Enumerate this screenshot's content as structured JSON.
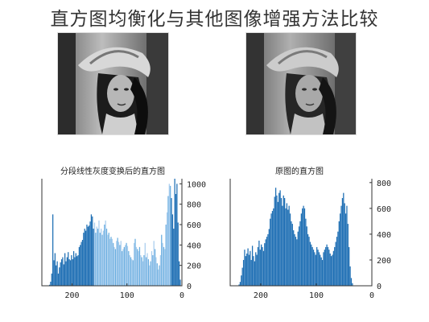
{
  "page_title": "直方图均衡化与其他图像增强方法比较",
  "colors": {
    "bar_dark": "#1f6fb4",
    "bar_light": "#6aaee0",
    "axis": "#333333"
  },
  "chart_data": [
    {
      "type": "bar",
      "title": "分段线性灰度变换后的直方图",
      "xlabel": "",
      "ylabel": "",
      "xlim": [
        255,
        0
      ],
      "ylim": [
        0,
        1050
      ],
      "x_ticks": [
        "200",
        "100",
        "0"
      ],
      "y_ticks": [
        "0",
        "200",
        "400",
        "600",
        "800",
        "1000"
      ],
      "x": [
        245,
        243,
        241,
        239,
        237,
        235,
        233,
        231,
        229,
        227,
        225,
        223,
        221,
        219,
        217,
        215,
        213,
        211,
        209,
        207,
        205,
        203,
        201,
        199,
        197,
        195,
        193,
        191,
        189,
        187,
        185,
        183,
        181,
        179,
        177,
        175,
        173,
        171,
        169,
        167,
        165,
        163,
        161,
        159,
        157,
        155,
        153,
        151,
        149,
        147,
        145,
        143,
        141,
        139,
        137,
        135,
        133,
        131,
        129,
        127,
        125,
        123,
        121,
        119,
        117,
        115,
        113,
        111,
        109,
        107,
        105,
        103,
        101,
        99,
        97,
        95,
        93,
        91,
        89,
        87,
        85,
        83,
        81,
        79,
        77,
        75,
        73,
        71,
        69,
        67,
        65,
        63,
        61,
        59,
        57,
        55,
        53,
        51,
        49,
        47,
        45,
        43,
        41,
        39,
        37,
        35,
        33,
        31,
        29,
        27,
        25,
        23,
        21,
        19,
        17,
        15,
        13,
        11,
        9,
        7,
        5,
        3,
        1
      ],
      "values": [
        0,
        0,
        10,
        40,
        120,
        700,
        250,
        320,
        200,
        240,
        120,
        180,
        230,
        260,
        280,
        210,
        320,
        240,
        280,
        330,
        260,
        250,
        300,
        260,
        340,
        280,
        320,
        290,
        300,
        380,
        400,
        430,
        450,
        520,
        560,
        540,
        600,
        580,
        590,
        630,
        700,
        680,
        560,
        620,
        520,
        580,
        560,
        640,
        520,
        560,
        500,
        540,
        600,
        640,
        560,
        500,
        520,
        460,
        480,
        460,
        420,
        380,
        360,
        440,
        470,
        430,
        400,
        440,
        340,
        360,
        380,
        400,
        420,
        390,
        340,
        300,
        280,
        260,
        250,
        420,
        460,
        380,
        360,
        340,
        380,
        300,
        280,
        240,
        300,
        420,
        280,
        320,
        260,
        200,
        240,
        340,
        300,
        440,
        360,
        280,
        220,
        160,
        200,
        300,
        500,
        420,
        380,
        360,
        600,
        720,
        880,
        1000,
        980,
        860,
        700,
        560,
        1080,
        900,
        1000,
        620,
        240,
        60,
        0
      ],
      "highlight_range": [
        20,
        160
      ]
    },
    {
      "type": "bar",
      "title": "原图的直方图",
      "xlabel": "",
      "ylabel": "",
      "xlim": [
        255,
        0
      ],
      "ylim": [
        0,
        830
      ],
      "x_ticks": [
        "200",
        "100",
        "0"
      ],
      "y_ticks": [
        "0",
        "200",
        "400",
        "600",
        "800"
      ],
      "x": [
        241,
        239,
        237,
        235,
        233,
        231,
        229,
        227,
        225,
        223,
        221,
        219,
        217,
        215,
        213,
        211,
        209,
        207,
        205,
        203,
        201,
        199,
        197,
        195,
        193,
        191,
        189,
        187,
        185,
        183,
        181,
        179,
        177,
        175,
        173,
        171,
        169,
        167,
        165,
        163,
        161,
        159,
        157,
        155,
        153,
        151,
        149,
        147,
        145,
        143,
        141,
        139,
        137,
        135,
        133,
        131,
        129,
        127,
        125,
        123,
        121,
        119,
        117,
        115,
        113,
        111,
        109,
        107,
        105,
        103,
        101,
        99,
        97,
        95,
        93,
        91,
        89,
        87,
        85,
        83,
        81,
        79,
        77,
        75,
        73,
        71,
        69,
        67,
        65,
        63,
        61,
        59,
        57,
        55,
        53,
        51,
        49,
        47,
        45,
        43,
        41,
        39,
        37,
        35,
        33,
        31,
        29,
        27,
        25,
        23,
        21,
        19,
        17,
        15,
        13,
        11,
        9
      ],
      "values": [
        0,
        10,
        30,
        80,
        140,
        200,
        280,
        230,
        250,
        290,
        240,
        270,
        200,
        310,
        230,
        190,
        260,
        240,
        300,
        350,
        280,
        320,
        300,
        270,
        330,
        360,
        380,
        400,
        440,
        520,
        560,
        580,
        600,
        690,
        760,
        700,
        650,
        720,
        740,
        680,
        620,
        700,
        680,
        600,
        640,
        590,
        620,
        560,
        500,
        480,
        430,
        400,
        380,
        360,
        420,
        460,
        500,
        560,
        600,
        620,
        600,
        520,
        460,
        400,
        380,
        340,
        320,
        300,
        280,
        260,
        240,
        300,
        280,
        260,
        240,
        220,
        200,
        260,
        280,
        300,
        320,
        300,
        280,
        250,
        230,
        240,
        270,
        300,
        340,
        380,
        420,
        500,
        560,
        620,
        680,
        720,
        640,
        560,
        620,
        480,
        300,
        150,
        60,
        20,
        0,
        0,
        0,
        0,
        0,
        0,
        0,
        0,
        0,
        0,
        0,
        0,
        0
      ]
    }
  ]
}
